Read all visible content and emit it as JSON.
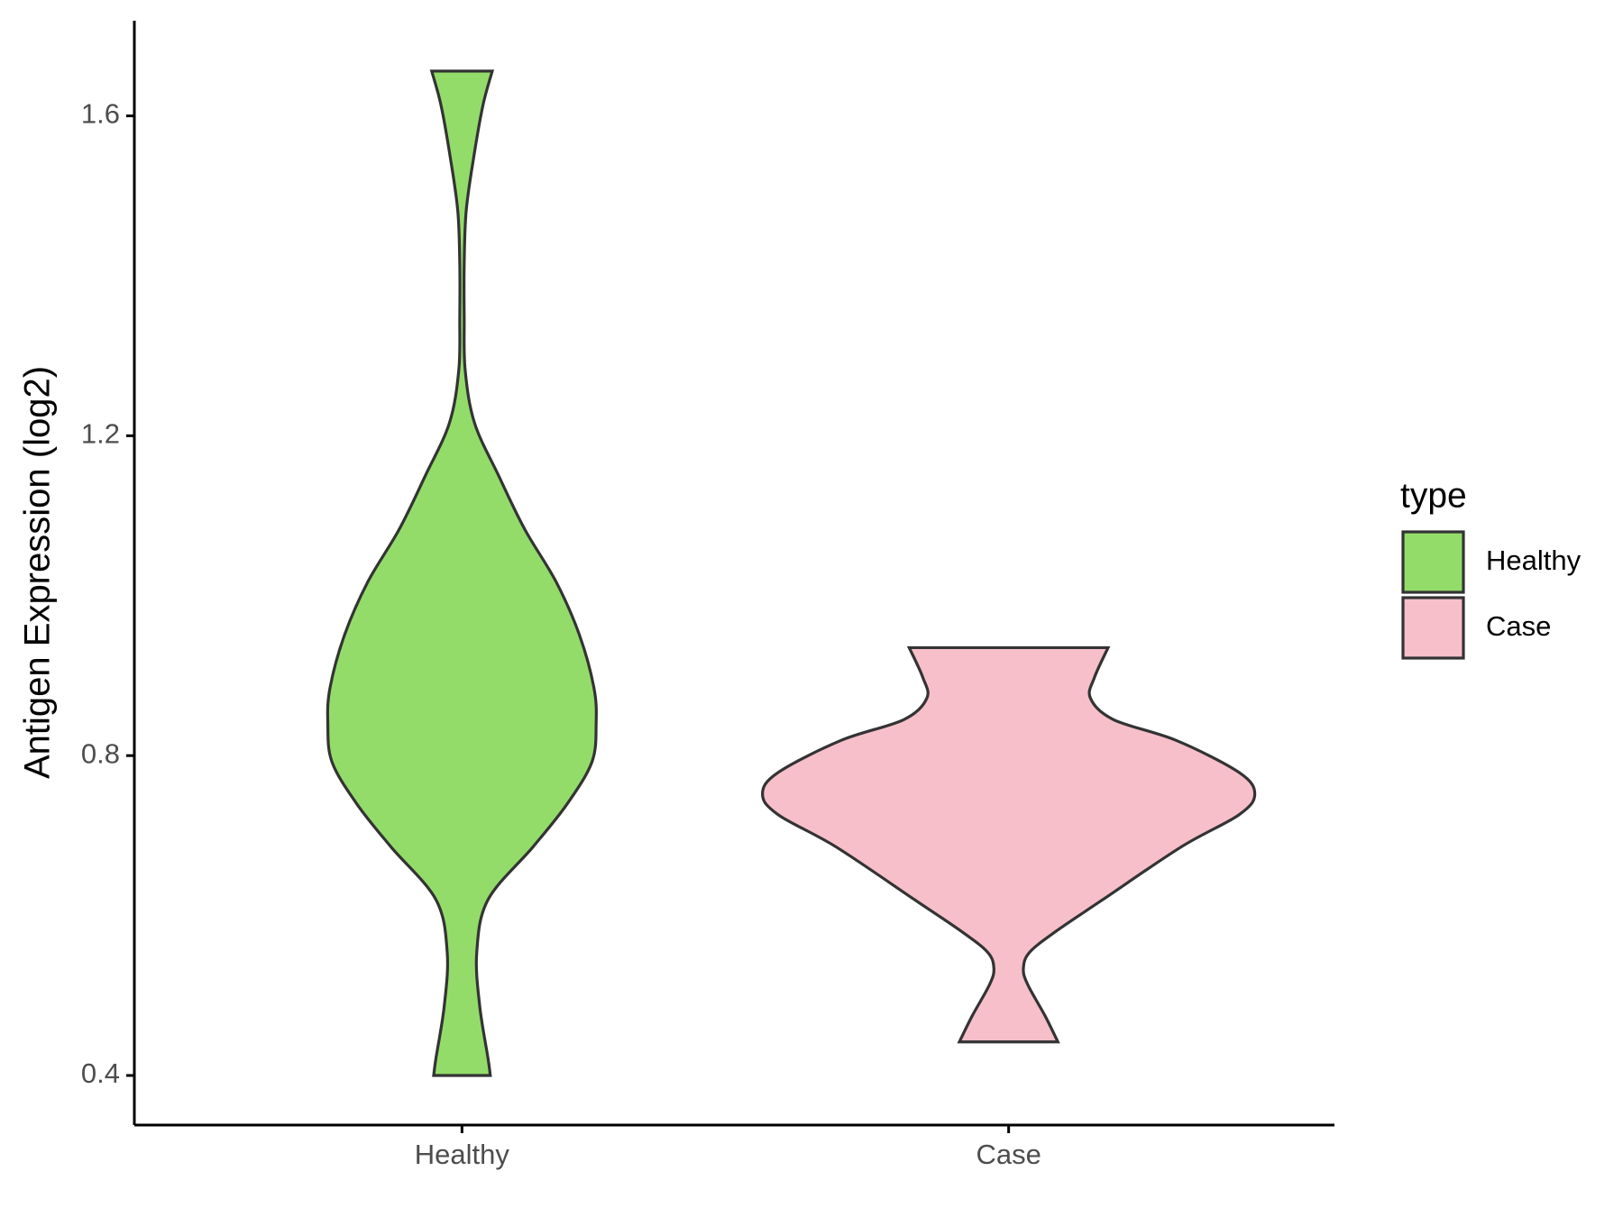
{
  "chart_data": {
    "type": "violin",
    "y_label": "Antigen Expression (log2)",
    "categories": [
      "Healthy",
      "Case"
    ],
    "ylim": [
      0.338,
      1.719
    ],
    "yticks": [
      0.4,
      0.8,
      1.2,
      1.6
    ],
    "legend_title": "type",
    "legend": "right",
    "series": [
      {
        "name": "Healthy",
        "color": "#93dc6a",
        "y": [
          1.656,
          1.613,
          1.547,
          1.481,
          1.415,
          1.348,
          1.282,
          1.216,
          1.15,
          1.083,
          1.017,
          0.951,
          0.885,
          0.84,
          0.792,
          0.739,
          0.686,
          0.62,
          0.554,
          0.487,
          0.421,
          0.4
        ],
        "widths": [
          0.123,
          0.085,
          0.047,
          0.017,
          0.009,
          0.009,
          0.013,
          0.051,
          0.149,
          0.255,
          0.383,
          0.477,
          0.536,
          0.545,
          0.528,
          0.426,
          0.289,
          0.106,
          0.06,
          0.072,
          0.106,
          0.115
        ]
      },
      {
        "name": "Case",
        "color": "#f7bfca",
        "y": [
          0.935,
          0.898,
          0.872,
          0.845,
          0.819,
          0.779,
          0.752,
          0.726,
          0.686,
          0.62,
          0.58,
          0.554,
          0.534,
          0.514,
          0.474,
          0.442
        ],
        "widths": [
          0.404,
          0.349,
          0.332,
          0.426,
          0.681,
          0.936,
          1,
          0.936,
          0.702,
          0.383,
          0.191,
          0.085,
          0.06,
          0.077,
          0.149,
          0.2
        ]
      }
    ]
  }
}
